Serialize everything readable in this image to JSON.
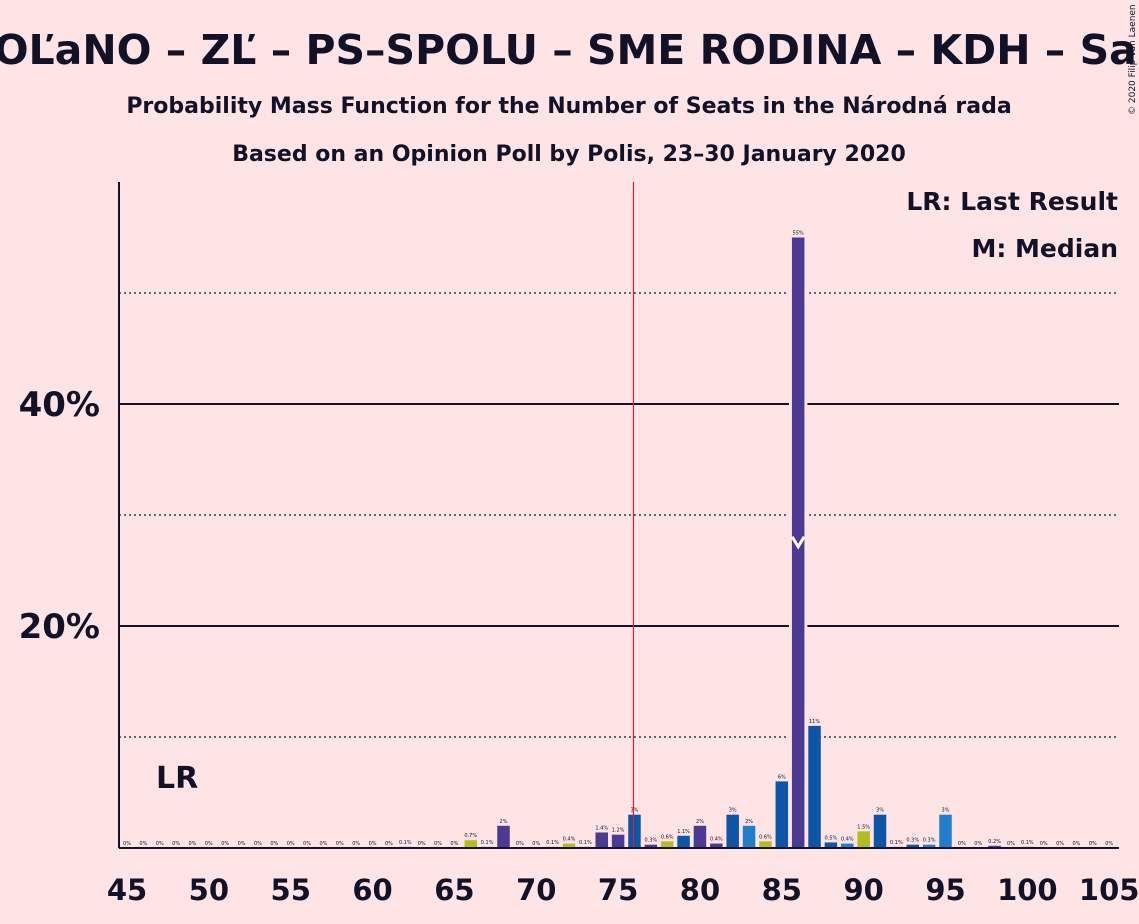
{
  "chart_data": {
    "type": "bar",
    "title": "OĽaNO – ZĽ – PS–SPOLU – SME RODINA – KDH – SaS",
    "subtitle": "Probability Mass Function for the Number of Seats in the Národná rada",
    "subtitle2": "Based on an Opinion Poll by Polis, 23–30 January 2020",
    "copyright": "© 2020 Filip van Laenen",
    "legend": [
      "LR: Last Result",
      "M: Median"
    ],
    "lr_label": "LR",
    "xlim": [
      45,
      105
    ],
    "ylim": [
      0,
      60
    ],
    "x_ticks": [
      "45",
      "50",
      "55",
      "60",
      "65",
      "70",
      "75",
      "80",
      "85",
      "90",
      "95",
      "100",
      "105"
    ],
    "y_ticks": [
      "20%",
      "40%"
    ],
    "majority_line": 76,
    "last_result": 48,
    "median": 86,
    "colors": {
      "purple": "#4a3a91",
      "blue": "#0d55a6",
      "lightblue": "#1f7fca",
      "olive": "#b3bd1b",
      "majority": "#e5192e",
      "grid": "#111128"
    },
    "bars": [
      {
        "x": 45,
        "value": 0.0,
        "label": "0%",
        "color": "purple"
      },
      {
        "x": 46,
        "value": 0.0,
        "label": "0%",
        "color": "purple"
      },
      {
        "x": 47,
        "value": 0.0,
        "label": "0%",
        "color": "purple"
      },
      {
        "x": 48,
        "value": 0.0,
        "label": "0%",
        "color": "purple"
      },
      {
        "x": 49,
        "value": 0.0,
        "label": "0%",
        "color": "purple"
      },
      {
        "x": 50,
        "value": 0.0,
        "label": "0%",
        "color": "purple"
      },
      {
        "x": 51,
        "value": 0.0,
        "label": "0%",
        "color": "purple"
      },
      {
        "x": 52,
        "value": 0.0,
        "label": "0%",
        "color": "purple"
      },
      {
        "x": 53,
        "value": 0.0,
        "label": "0%",
        "color": "purple"
      },
      {
        "x": 54,
        "value": 0.0,
        "label": "0%",
        "color": "purple"
      },
      {
        "x": 55,
        "value": 0.0,
        "label": "0%",
        "color": "purple"
      },
      {
        "x": 56,
        "value": 0.0,
        "label": "0%",
        "color": "purple"
      },
      {
        "x": 57,
        "value": 0.0,
        "label": "0%",
        "color": "purple"
      },
      {
        "x": 58,
        "value": 0.0,
        "label": "0%",
        "color": "purple"
      },
      {
        "x": 59,
        "value": 0.0,
        "label": "0%",
        "color": "purple"
      },
      {
        "x": 60,
        "value": 0.0,
        "label": "0%",
        "color": "purple"
      },
      {
        "x": 61,
        "value": 0.0,
        "label": "0%",
        "color": "purple"
      },
      {
        "x": 62,
        "value": 0.1,
        "label": "0.1%",
        "color": "purple"
      },
      {
        "x": 63,
        "value": 0.0,
        "label": "0%",
        "color": "purple"
      },
      {
        "x": 64,
        "value": 0.0,
        "label": "0%",
        "color": "purple"
      },
      {
        "x": 65,
        "value": 0.0,
        "label": "0%",
        "color": "purple"
      },
      {
        "x": 66,
        "value": 0.7,
        "label": "0.7%",
        "color": "olive"
      },
      {
        "x": 67,
        "value": 0.1,
        "label": "0.1%",
        "color": "purple"
      },
      {
        "x": 68,
        "value": 2.0,
        "label": "2%",
        "color": "purple"
      },
      {
        "x": 69,
        "value": 0.0,
        "label": "0%",
        "color": "purple"
      },
      {
        "x": 70,
        "value": 0.0,
        "label": "0%",
        "color": "purple"
      },
      {
        "x": 71,
        "value": 0.1,
        "label": "0.1%",
        "color": "purple"
      },
      {
        "x": 72,
        "value": 0.4,
        "label": "0.4%",
        "color": "olive"
      },
      {
        "x": 73,
        "value": 0.1,
        "label": "0.1%",
        "color": "purple"
      },
      {
        "x": 74,
        "value": 1.4,
        "label": "1.4%",
        "color": "purple"
      },
      {
        "x": 75,
        "value": 1.2,
        "label": "1.2%",
        "color": "purple"
      },
      {
        "x": 76,
        "value": 3.0,
        "label": "3%",
        "color": "blue"
      },
      {
        "x": 77,
        "value": 0.3,
        "label": "0.3%",
        "color": "purple"
      },
      {
        "x": 78,
        "value": 0.6,
        "label": "0.6%",
        "color": "olive"
      },
      {
        "x": 79,
        "value": 1.1,
        "label": "1.1%",
        "color": "blue"
      },
      {
        "x": 80,
        "value": 2.0,
        "label": "2%",
        "color": "purple"
      },
      {
        "x": 81,
        "value": 0.4,
        "label": "0.4%",
        "color": "purple"
      },
      {
        "x": 82,
        "value": 3.0,
        "label": "3%",
        "color": "blue"
      },
      {
        "x": 83,
        "value": 2.0,
        "label": "2%",
        "color": "lightblue"
      },
      {
        "x": 84,
        "value": 0.6,
        "label": "0.6%",
        "color": "olive"
      },
      {
        "x": 85,
        "value": 6.0,
        "label": "6%",
        "color": "blue"
      },
      {
        "x": 86,
        "value": 55.0,
        "label": "55%",
        "color": "purple"
      },
      {
        "x": 87,
        "value": 11.0,
        "label": "11%",
        "color": "blue"
      },
      {
        "x": 88,
        "value": 0.5,
        "label": "0.5%",
        "color": "blue"
      },
      {
        "x": 89,
        "value": 0.4,
        "label": "0.4%",
        "color": "lightblue"
      },
      {
        "x": 90,
        "value": 1.5,
        "label": "1.5%",
        "color": "olive"
      },
      {
        "x": 91,
        "value": 3.0,
        "label": "3%",
        "color": "blue"
      },
      {
        "x": 92,
        "value": 0.1,
        "label": "0.1%",
        "color": "purple"
      },
      {
        "x": 93,
        "value": 0.3,
        "label": "0.3%",
        "color": "blue"
      },
      {
        "x": 94,
        "value": 0.3,
        "label": "0.3%",
        "color": "lightblue"
      },
      {
        "x": 95,
        "value": 3.0,
        "label": "3%",
        "color": "lightblue"
      },
      {
        "x": 96,
        "value": 0.0,
        "label": "0%",
        "color": "purple"
      },
      {
        "x": 97,
        "value": 0.0,
        "label": "0%",
        "color": "purple"
      },
      {
        "x": 98,
        "value": 0.2,
        "label": "0.2%",
        "color": "purple"
      },
      {
        "x": 99,
        "value": 0.0,
        "label": "0%",
        "color": "purple"
      },
      {
        "x": 100,
        "value": 0.1,
        "label": "0.1%",
        "color": "purple"
      },
      {
        "x": 101,
        "value": 0.0,
        "label": "0%",
        "color": "purple"
      },
      {
        "x": 102,
        "value": 0.0,
        "label": "0%",
        "color": "purple"
      },
      {
        "x": 103,
        "value": 0.0,
        "label": "0%",
        "color": "purple"
      },
      {
        "x": 104,
        "value": 0.0,
        "label": "0%",
        "color": "purple"
      },
      {
        "x": 105,
        "value": 0.0,
        "label": "0%",
        "color": "purple"
      }
    ]
  }
}
